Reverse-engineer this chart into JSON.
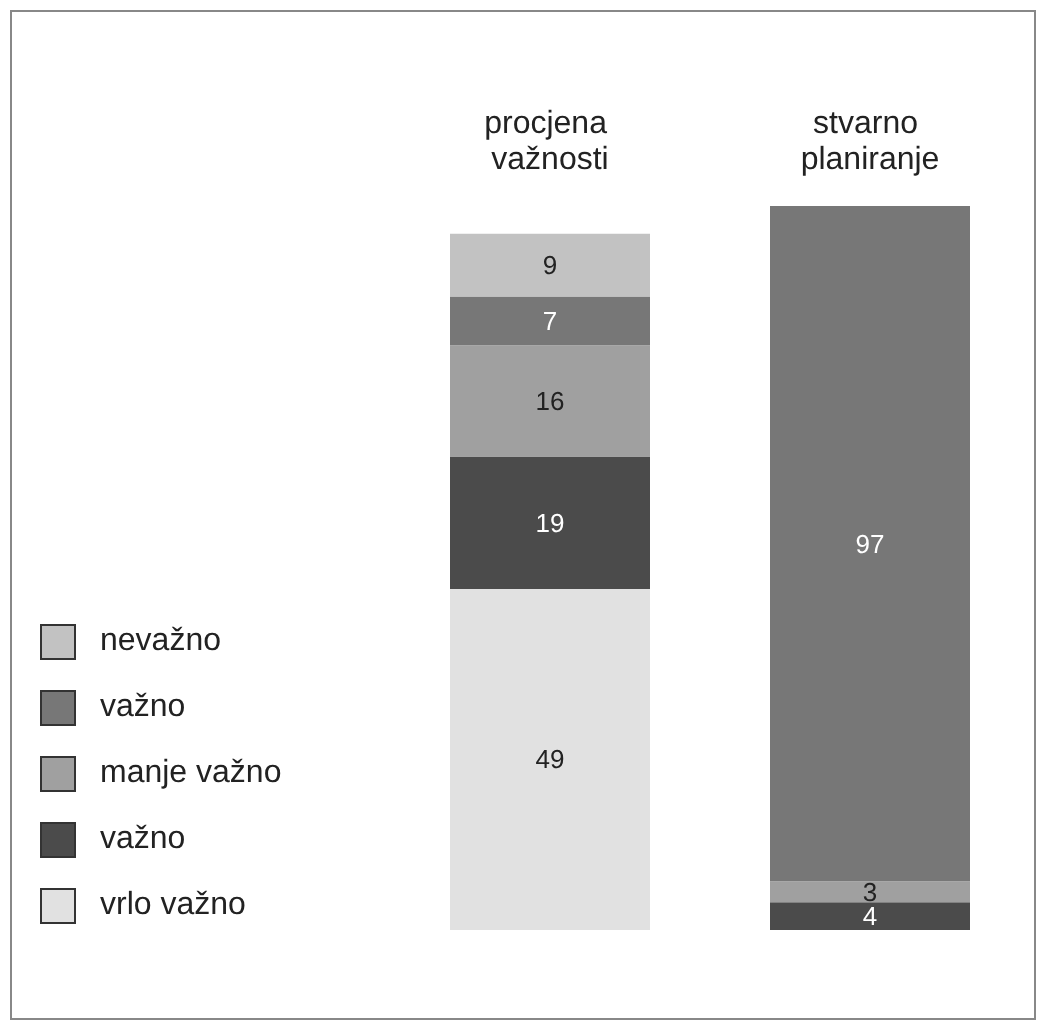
{
  "chart_data": {
    "type": "bar",
    "stacked": true,
    "categories": [
      "procjena važnosti",
      "stvarno planiranje"
    ],
    "series": [
      {
        "name": "vrlo važno",
        "color": "#e1e1e1",
        "values": [
          49,
          null
        ]
      },
      {
        "name": "važno",
        "color": "#4b4b4b",
        "values": [
          19,
          4
        ]
      },
      {
        "name": "manje važno",
        "color": "#a0a0a0",
        "values": [
          16,
          3
        ]
      },
      {
        "name": "važno",
        "color": "#777777",
        "values": [
          7,
          97
        ]
      },
      {
        "name": "nevažno",
        "color": "#c2c2c2",
        "values": [
          9,
          null
        ]
      }
    ],
    "data_labels": true,
    "legend": "left"
  }
}
